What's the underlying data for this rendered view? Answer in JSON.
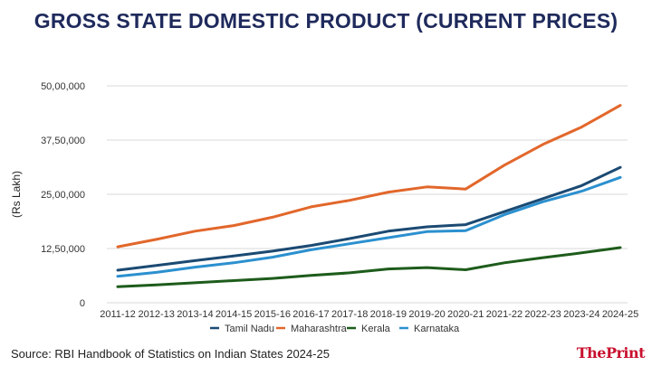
{
  "chart_data": {
    "type": "line",
    "title": "GROSS STATE DOMESTIC PRODUCT (CURRENT PRICES)",
    "ylabel": "(Rs Lakh)",
    "xlabel": "",
    "ylim": [
      0,
      5000000
    ],
    "yticks": [
      0,
      1250000,
      2500000,
      3750000,
      5000000
    ],
    "ytick_labels": [
      "0",
      "12,50,000",
      "25,00,000",
      "37,50,000",
      "50,00,000"
    ],
    "grid": true,
    "legend_position": "bottom",
    "categories": [
      "2011-12",
      "2012-13",
      "2013-14",
      "2014-15",
      "2015-16",
      "2016-17",
      "2017-18",
      "2018-19",
      "2019-20",
      "2020-21",
      "2021-22",
      "2022-23",
      "2023-24",
      "2024-25"
    ],
    "series": [
      {
        "name": "Tamil Nadu",
        "color": "#1b4a73",
        "values": [
          750000,
          860000,
          970000,
          1080000,
          1190000,
          1320000,
          1480000,
          1650000,
          1750000,
          1800000,
          2100000,
          2400000,
          2700000,
          3120000
        ]
      },
      {
        "name": "Maharashtra",
        "color": "#e2672b",
        "values": [
          1290000,
          1460000,
          1650000,
          1780000,
          1970000,
          2210000,
          2360000,
          2550000,
          2670000,
          2620000,
          3170000,
          3650000,
          4050000,
          4550000
        ]
      },
      {
        "name": "Kerala",
        "color": "#1d5c1b",
        "values": [
          370000,
          410000,
          460000,
          510000,
          560000,
          630000,
          690000,
          780000,
          810000,
          760000,
          920000,
          1040000,
          1150000,
          1270000
        ]
      },
      {
        "name": "Karnataka",
        "color": "#2b90cf",
        "values": [
          610000,
          700000,
          820000,
          920000,
          1050000,
          1220000,
          1360000,
          1500000,
          1640000,
          1660000,
          2030000,
          2330000,
          2570000,
          2890000
        ]
      }
    ]
  },
  "footer": {
    "source": "Source: RBI Handbook of Statistics on Indian States 2024-25",
    "logo_text": "ThePrint"
  }
}
